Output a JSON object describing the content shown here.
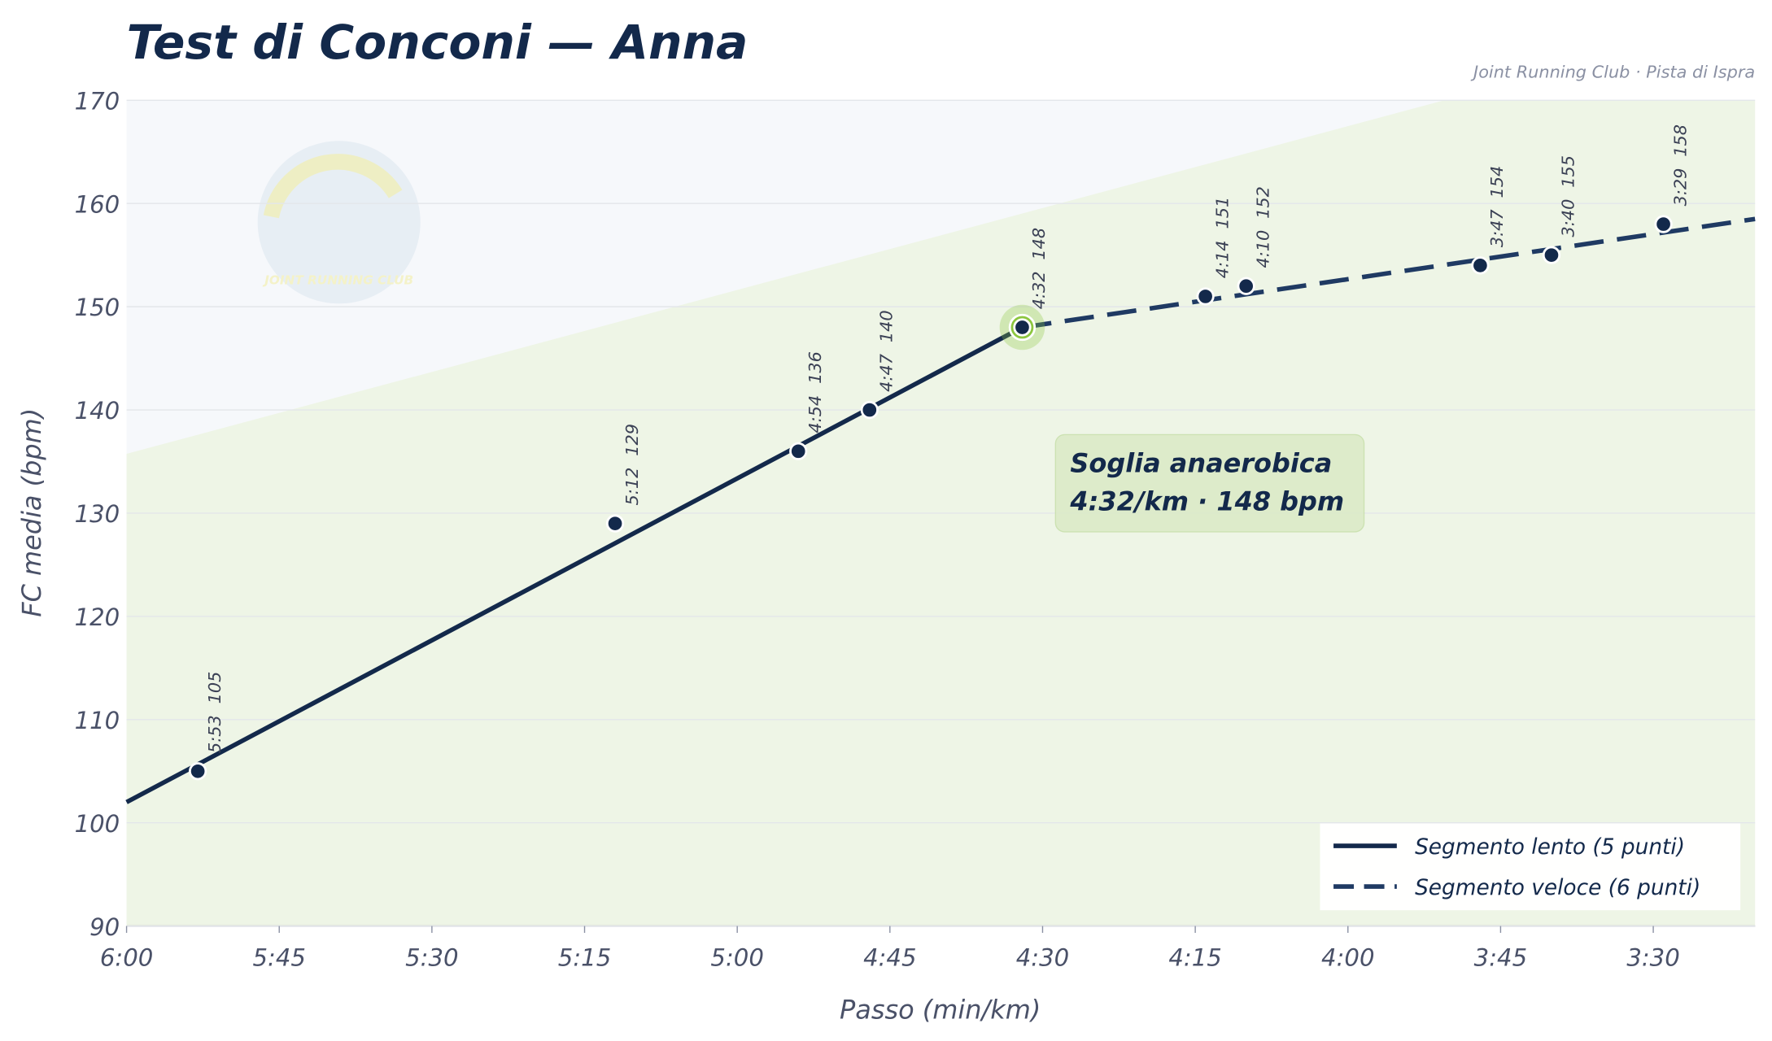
{
  "chart_data": {
    "type": "line",
    "title": "Test di Conconi — Anna",
    "subtitle": "Joint Running Club · Pista di Ispra",
    "logo_text": "JOINT RUNNING CLUB",
    "x_label": "Passo (min/km)",
    "y_label": "FC media (bpm)",
    "xlim": [
      360,
      200
    ],
    "ylim": [
      90,
      170
    ],
    "xticks": [
      {
        "value": 360,
        "label": "6:00"
      },
      {
        "value": 345,
        "label": "5:45"
      },
      {
        "value": 330,
        "label": "5:30"
      },
      {
        "value": 315,
        "label": "5:15"
      },
      {
        "value": 300,
        "label": "5:00"
      },
      {
        "value": 285,
        "label": "4:45"
      },
      {
        "value": 270,
        "label": "4:30"
      },
      {
        "value": 255,
        "label": "4:15"
      },
      {
        "value": 240,
        "label": "4:00"
      },
      {
        "value": 225,
        "label": "3:45"
      },
      {
        "value": 210,
        "label": "3:30"
      }
    ],
    "yticks": [
      90,
      100,
      110,
      120,
      130,
      140,
      150,
      160,
      170
    ],
    "grid": true,
    "points": {
      "color": "#13294b",
      "x": [
        353,
        312,
        294,
        287,
        272,
        254,
        250,
        227,
        220,
        209
      ],
      "x_labels": [
        "5:53",
        "5:12",
        "4:54",
        "4:47",
        "4:32",
        "4:14",
        "4:10",
        "3:47",
        "3:40",
        "3:29"
      ],
      "values": [
        105,
        129,
        136,
        140,
        148,
        151,
        152,
        154,
        155,
        158
      ]
    },
    "threshold": {
      "x": 272,
      "value": 148,
      "color": "#8cc63f",
      "label_lines": [
        "Soglia anaerobica",
        "4:32/km · 148 bpm"
      ]
    },
    "series": [
      {
        "name": "Segmento lento (5 punti)",
        "color": "#13294b",
        "dash": false,
        "x": [
          360,
          272
        ],
        "values": [
          102,
          148
        ]
      },
      {
        "name": "Segmento veloce (6 punti)",
        "color": "#1f3a63",
        "dash": true,
        "x": [
          272,
          200
        ],
        "values": [
          148,
          158.5
        ]
      }
    ],
    "legend": "lower right"
  }
}
